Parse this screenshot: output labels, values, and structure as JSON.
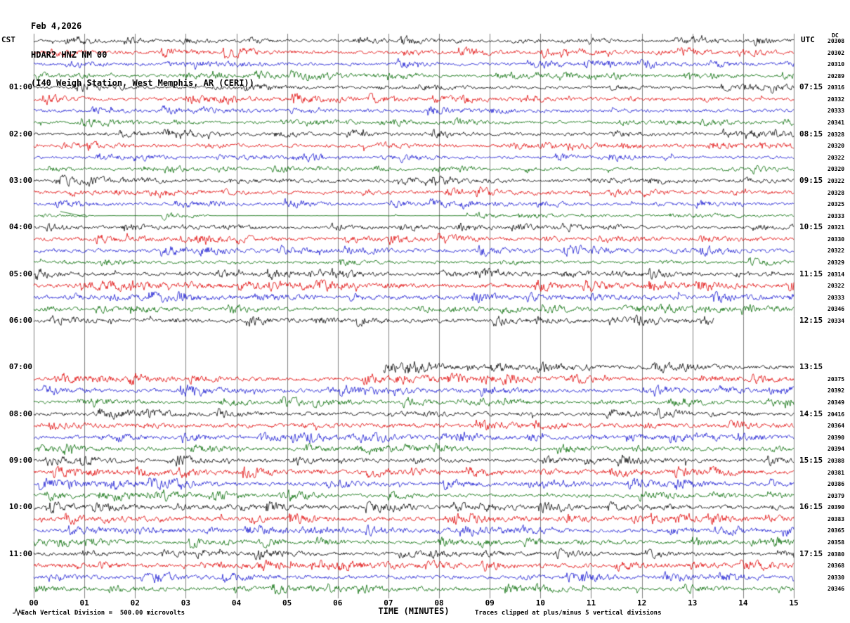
{
  "title": {
    "date": "Feb 4,2026",
    "station": "HDAR2 HNZ NM 00",
    "location": "(I40 Weigh Station, West Memphis, AR (CERI))"
  },
  "axes": {
    "left_header": "CST",
    "right_header": "UTC",
    "id_header": "DC",
    "x_label": "TIME (MINUTES)",
    "x_ticks": [
      "00",
      "01",
      "02",
      "03",
      "04",
      "05",
      "06",
      "07",
      "08",
      "09",
      "10",
      "11",
      "12",
      "13",
      "14",
      "15"
    ]
  },
  "footer": {
    "left": "Each Vertical Division =  500.00 microvolts",
    "right": "Traces clipped at plus/minus 5 vertical divisions"
  },
  "colors": {
    "black": "#000000",
    "red": "#e00000",
    "blue": "#1515d0",
    "green": "#006a00",
    "grid": "#808080"
  },
  "chart_data": {
    "type": "line",
    "kind": "seismogram-helicorder",
    "minutes_per_line": 15,
    "x_range_minutes": [
      0,
      15
    ],
    "volts_per_division": "500.00 microvolts",
    "clip_divisions": 5,
    "rows": [
      {
        "color": "black",
        "id": "20308",
        "amp": 1.0
      },
      {
        "color": "red",
        "id": "20302",
        "amp": 1.2
      },
      {
        "color": "blue",
        "id": "20310",
        "amp": 1.1
      },
      {
        "color": "green",
        "id": "20289",
        "amp": 1.0
      },
      {
        "color": "black",
        "cst": "01:00",
        "utc": "07:15",
        "id": "20316",
        "amp": 1.0
      },
      {
        "color": "red",
        "id": "20332",
        "amp": 1.2
      },
      {
        "color": "blue",
        "id": "20333",
        "amp": 1.2
      },
      {
        "color": "green",
        "id": "20341",
        "amp": 1.0
      },
      {
        "color": "black",
        "cst": "02:00",
        "utc": "08:15",
        "id": "20328",
        "amp": 1.1
      },
      {
        "color": "red",
        "id": "20320",
        "amp": 1.2
      },
      {
        "color": "blue",
        "id": "20322",
        "amp": 1.0
      },
      {
        "color": "green",
        "id": "20320",
        "amp": 0.9
      },
      {
        "color": "black",
        "cst": "03:00",
        "utc": "09:15",
        "id": "20322",
        "amp": 1.2
      },
      {
        "color": "red",
        "id": "20328",
        "amp": 1.2
      },
      {
        "color": "blue",
        "id": "20325",
        "amp": 1.0
      },
      {
        "color": "green",
        "id": "20333",
        "amp": 0.8,
        "quiet": [
          [
            0.08,
            0.17
          ],
          [
            0.23,
            0.58
          ]
        ],
        "ramp": [
          0.035,
          0.07
        ]
      },
      {
        "color": "black",
        "cst": "04:00",
        "utc": "10:15",
        "id": "20321",
        "amp": 1.1
      },
      {
        "color": "red",
        "id": "20330",
        "amp": 1.3
      },
      {
        "color": "blue",
        "id": "20322",
        "amp": 1.3
      },
      {
        "color": "green",
        "id": "20329",
        "amp": 1.0
      },
      {
        "color": "black",
        "cst": "05:00",
        "utc": "11:15",
        "id": "20314",
        "amp": 1.2
      },
      {
        "color": "red",
        "id": "20322",
        "amp": 1.5
      },
      {
        "color": "blue",
        "id": "20333",
        "amp": 1.5
      },
      {
        "color": "green",
        "id": "20346",
        "amp": 1.2
      },
      {
        "color": "black",
        "cst": "06:00",
        "utc": "12:15",
        "id": "20334",
        "amp": 1.3,
        "end": 0.895
      },
      {
        "color": "red",
        "blank": true
      },
      {
        "color": "blue",
        "blank": true
      },
      {
        "color": "green",
        "blank": true
      },
      {
        "color": "black",
        "cst": "07:00",
        "utc": "13:15",
        "amp": 1.4,
        "start": 0.46,
        "burst_start": true
      },
      {
        "color": "red",
        "id": "20375",
        "amp": 1.4
      },
      {
        "color": "blue",
        "id": "20392",
        "amp": 1.4
      },
      {
        "color": "green",
        "id": "20349",
        "amp": 1.1
      },
      {
        "color": "black",
        "cst": "08:00",
        "utc": "14:15",
        "id": "20416",
        "amp": 1.3
      },
      {
        "color": "red",
        "id": "20364",
        "amp": 1.5
      },
      {
        "color": "blue",
        "id": "20390",
        "amp": 1.3
      },
      {
        "color": "green",
        "id": "20394",
        "amp": 1.2
      },
      {
        "color": "black",
        "cst": "09:00",
        "utc": "15:15",
        "id": "20388",
        "amp": 1.3
      },
      {
        "color": "red",
        "id": "20381",
        "amp": 1.4
      },
      {
        "color": "blue",
        "id": "20386",
        "amp": 1.4
      },
      {
        "color": "green",
        "id": "20379",
        "amp": 1.2
      },
      {
        "color": "black",
        "cst": "10:00",
        "utc": "16:15",
        "id": "20390",
        "amp": 1.3
      },
      {
        "color": "red",
        "id": "20383",
        "amp": 1.4
      },
      {
        "color": "blue",
        "id": "20365",
        "amp": 1.3
      },
      {
        "color": "green",
        "id": "20358",
        "amp": 1.2
      },
      {
        "color": "black",
        "cst": "11:00",
        "utc": "17:15",
        "id": "20380",
        "amp": 1.3
      },
      {
        "color": "red",
        "id": "20368",
        "amp": 1.4
      },
      {
        "color": "blue",
        "id": "20330",
        "amp": 1.3
      },
      {
        "color": "green",
        "id": "20346",
        "amp": 1.2
      }
    ]
  }
}
